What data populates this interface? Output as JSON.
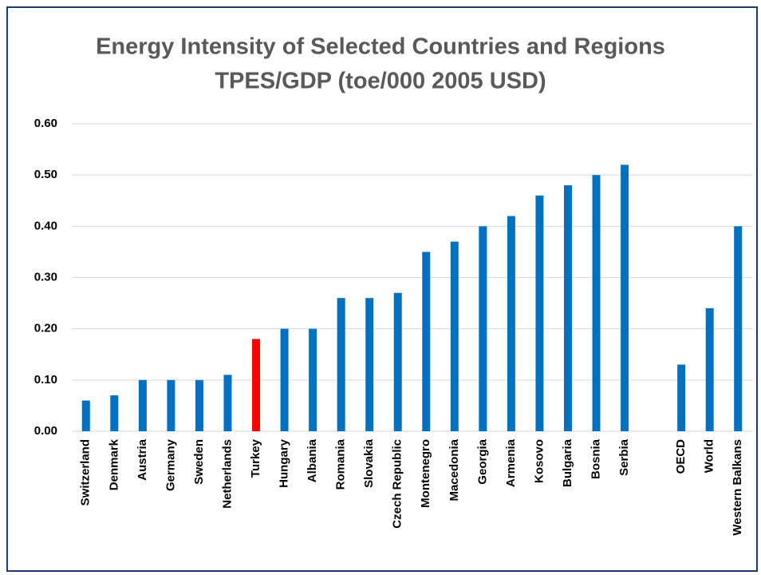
{
  "chart_data": {
    "type": "bar",
    "title": "Energy Intensity of Selected Countries and Regions",
    "subtitle": "TPES/GDP (toe/000 2005 USD)",
    "categories": [
      "Switzerland",
      "Denmark",
      "Austria",
      "Germany",
      "Sweden",
      "Netherlands",
      "Turkey",
      "Hungary",
      "Albania",
      "Romania",
      "Slovakia",
      "Czech Republic",
      "Montenegro",
      "Macedonia",
      "Georgia",
      "Armenia",
      "Kosovo",
      "Bulgaria",
      "Bosnia",
      "Serbia",
      null,
      "OECD",
      "World",
      "Western Balkans"
    ],
    "values": [
      0.06,
      0.07,
      0.1,
      0.1,
      0.1,
      0.11,
      0.18,
      0.2,
      0.2,
      0.26,
      0.26,
      0.27,
      0.35,
      0.37,
      0.4,
      0.42,
      0.46,
      0.48,
      0.5,
      0.52,
      null,
      0.13,
      0.24,
      0.4
    ],
    "colors": [
      "#0070c0",
      "#0070c0",
      "#0070c0",
      "#0070c0",
      "#0070c0",
      "#0070c0",
      "#ff0000",
      "#0070c0",
      "#0070c0",
      "#0070c0",
      "#0070c0",
      "#0070c0",
      "#0070c0",
      "#0070c0",
      "#0070c0",
      "#0070c0",
      "#0070c0",
      "#0070c0",
      "#0070c0",
      "#0070c0",
      null,
      "#0070c0",
      "#0070c0",
      "#0070c0"
    ],
    "ylim": [
      0,
      0.6
    ],
    "yticks": [
      {
        "value": 0,
        "label": "0.00"
      },
      {
        "value": 0.1,
        "label": "0.10"
      },
      {
        "value": 0.2,
        "label": "0.20"
      },
      {
        "value": 0.3,
        "label": "0.30"
      },
      {
        "value": 0.4,
        "label": "0.40"
      },
      {
        "value": 0.5,
        "label": "0.50"
      },
      {
        "value": 0.6,
        "label": "0.60"
      }
    ],
    "grid": true
  }
}
